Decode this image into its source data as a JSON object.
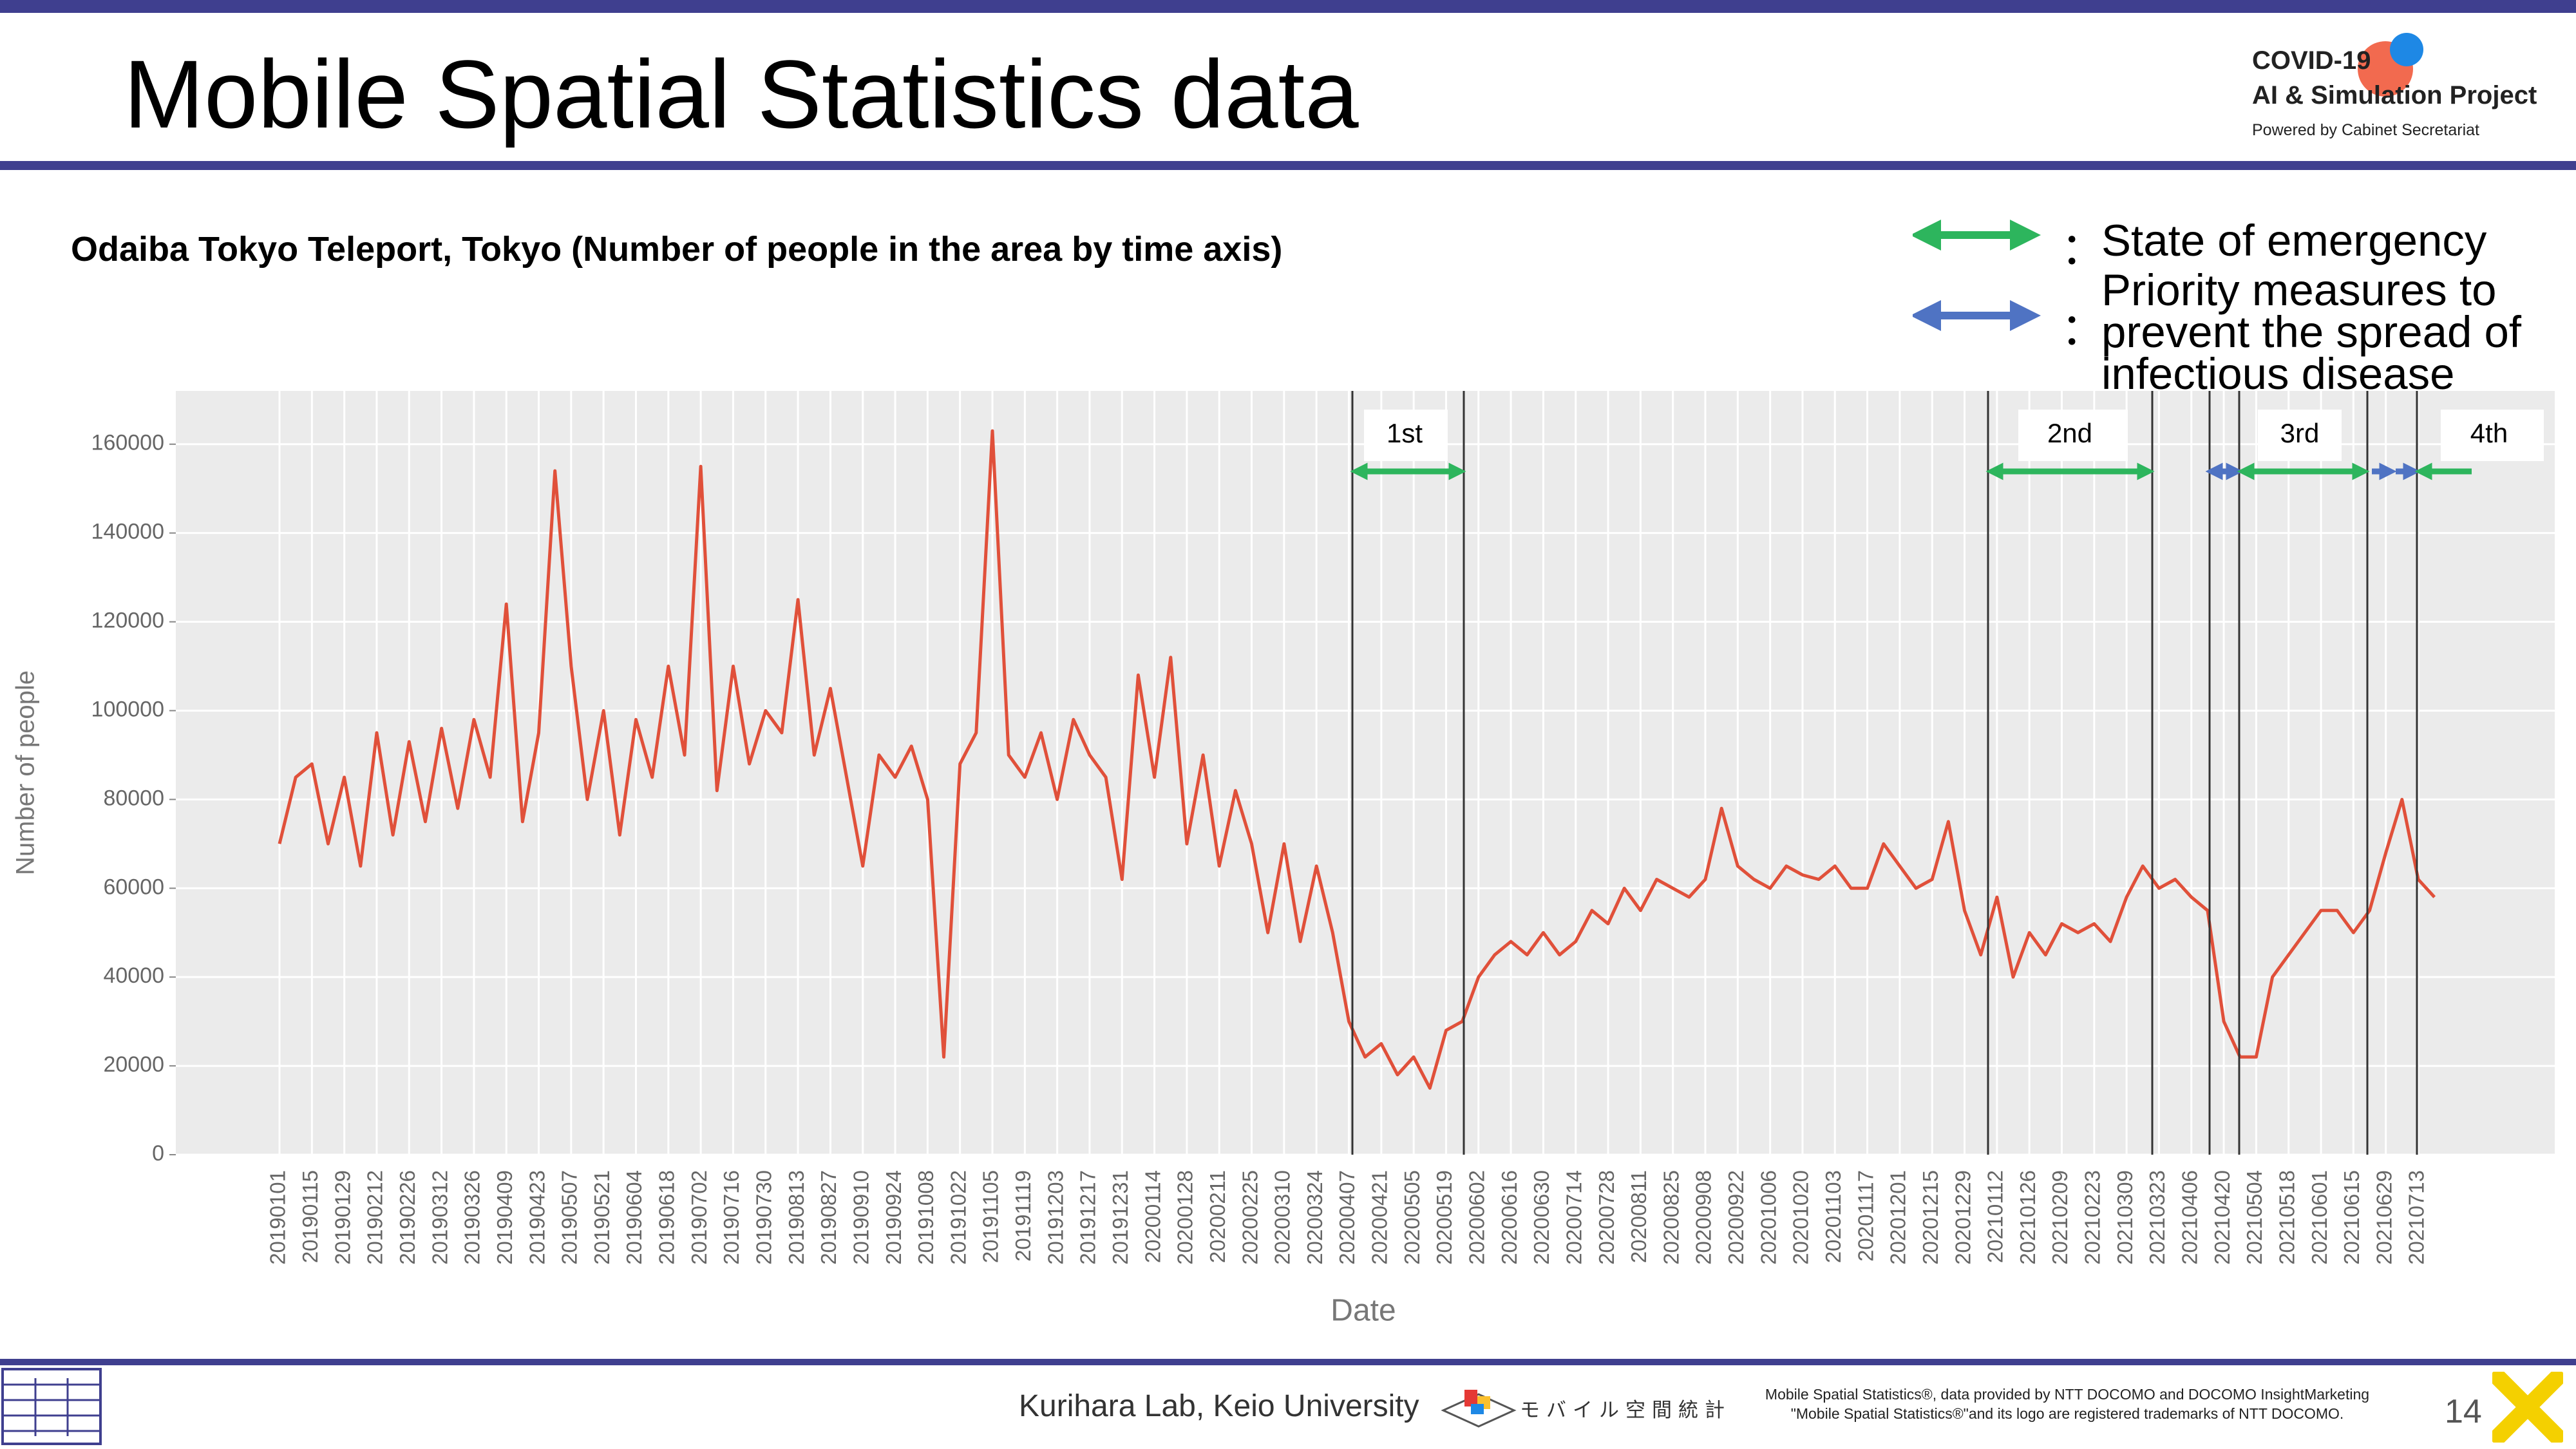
{
  "header": {
    "title": "Mobile Spatial Statistics data",
    "logo": {
      "line1": "COVID-19",
      "line2": "AI & Simulation Project",
      "line3": "Powered by Cabinet Secretariat"
    }
  },
  "legend_notes": [
    {
      "mark": "：",
      "label": "State of emergency",
      "color": "#2db55d"
    },
    {
      "mark": "：",
      "label": "Priority measures to prevent the spread of infectious disease",
      "color": "#4f73c3"
    }
  ],
  "chart_data": {
    "type": "line",
    "title": "Odaiba Tokyo Teleport, Tokyo (Number of people in the area by time axis)",
    "x_label": "Date",
    "y_label": "Number of people",
    "categories": [
      "20190101",
      null,
      "20190115",
      null,
      "20190129",
      null,
      "20190212",
      null,
      "20190226",
      null,
      "20190312",
      null,
      "20190326",
      null,
      "20190409",
      null,
      "20190423",
      null,
      "20190507",
      null,
      "20190521",
      null,
      "20190604",
      null,
      "20190618",
      null,
      "20190702",
      null,
      "20190716",
      null,
      "20190730",
      null,
      "20190813",
      null,
      "20190827",
      null,
      "20190910",
      null,
      "20190924",
      null,
      "20191008",
      null,
      "20191022",
      null,
      "20191105",
      null,
      "20191119",
      null,
      "20191203",
      null,
      "20191217",
      null,
      "20191231",
      null,
      "20200114",
      null,
      "20200128",
      null,
      "20200211",
      null,
      "20200225",
      null,
      "20200310",
      null,
      "20200324",
      null,
      "20200407",
      null,
      "20200421",
      null,
      "20200505",
      null,
      "20200519",
      null,
      "20200602",
      null,
      "20200616",
      null,
      "20200630",
      null,
      "20200714",
      null,
      "20200728",
      null,
      "20200811",
      null,
      "20200825",
      null,
      "20200908",
      null,
      "20200922",
      null,
      "20201006",
      null,
      "20201020",
      null,
      "20201103",
      null,
      "20201117",
      null,
      "20201201",
      null,
      "20201215",
      null,
      "20201229",
      null,
      "20210112",
      null,
      "20210126",
      null,
      "20210209",
      null,
      "20210223",
      null,
      "20210309",
      null,
      "20210323",
      null,
      "20210406",
      null,
      "20210420",
      null,
      "20210504",
      null,
      "20210518",
      null,
      "20210601",
      null,
      "20210615",
      null,
      "20210629",
      null,
      "20210713",
      null
    ],
    "series": [
      {
        "name": "Number of people",
        "color": "#e0503a",
        "values": [
          70000,
          85000,
          88000,
          70000,
          85000,
          65000,
          95000,
          72000,
          93000,
          75000,
          96000,
          78000,
          98000,
          85000,
          124000,
          75000,
          95000,
          154000,
          110000,
          80000,
          100000,
          72000,
          98000,
          85000,
          110000,
          90000,
          155000,
          82000,
          110000,
          88000,
          100000,
          95000,
          125000,
          90000,
          105000,
          85000,
          65000,
          90000,
          85000,
          92000,
          80000,
          22000,
          88000,
          95000,
          163000,
          90000,
          85000,
          95000,
          80000,
          98000,
          90000,
          85000,
          62000,
          108000,
          85000,
          112000,
          70000,
          90000,
          65000,
          82000,
          70000,
          50000,
          70000,
          48000,
          65000,
          50000,
          30000,
          22000,
          25000,
          18000,
          22000,
          15000,
          28000,
          30000,
          40000,
          45000,
          48000,
          45000,
          50000,
          45000,
          48000,
          55000,
          52000,
          60000,
          55000,
          62000,
          60000,
          58000,
          62000,
          78000,
          65000,
          62000,
          60000,
          65000,
          63000,
          62000,
          65000,
          60000,
          60000,
          70000,
          65000,
          60000,
          62000,
          75000,
          55000,
          45000,
          58000,
          40000,
          50000,
          45000,
          52000,
          50000,
          52000,
          48000,
          58000,
          65000,
          60000,
          62000,
          58000,
          55000,
          30000,
          22000,
          22000,
          40000,
          45000,
          50000,
          55000,
          55000,
          50000,
          55000,
          68000,
          80000,
          62000,
          58000
        ]
      }
    ],
    "ylim": [
      0,
      172000
    ],
    "yticks": [
      0,
      20000,
      40000,
      60000,
      80000,
      100000,
      120000,
      140000,
      160000
    ],
    "grid": true,
    "annotations": [
      "1st",
      "2nd",
      "3rd",
      "4th"
    ]
  },
  "footer": {
    "credit": "Kurihara Lab, Keio University",
    "brand": "モバイル空間統計",
    "notice1": "Mobile Spatial Statistics®, data provided by NTT DOCOMO and DOCOMO InsightMarketing",
    "notice2": "\"Mobile Spatial Statistics®\"and its logo are registered trademarks of NTT DOCOMO.",
    "page": "14"
  }
}
